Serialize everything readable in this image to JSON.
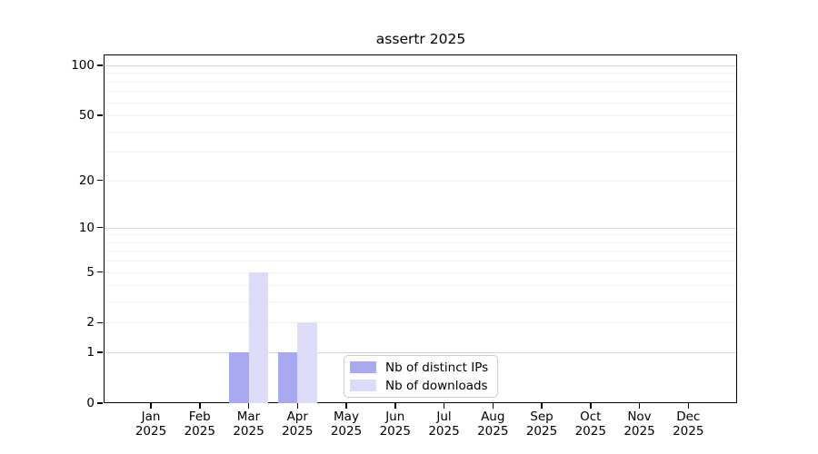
{
  "chart_data": {
    "type": "bar",
    "title": "assertr 2025",
    "categories": [
      "Jan",
      "Feb",
      "Mar",
      "Apr",
      "May",
      "Jun",
      "Jul",
      "Aug",
      "Sep",
      "Oct",
      "Nov",
      "Dec"
    ],
    "x_year_label": "2025",
    "series": [
      {
        "name": "Nb of distinct IPs",
        "color": "#a9a9f1",
        "values": [
          0,
          0,
          1,
          1,
          0,
          0,
          0,
          0,
          0,
          0,
          0,
          0
        ]
      },
      {
        "name": "Nb of downloads",
        "color": "#dcdcf8",
        "values": [
          0,
          0,
          5,
          2,
          0,
          0,
          0,
          0,
          0,
          0,
          0,
          0
        ]
      }
    ],
    "xlabel": "",
    "ylabel": "",
    "y_axis": {
      "scale": "log1p",
      "tick_labels": [
        "0",
        "1",
        "2",
        "5",
        "10",
        "20",
        "50",
        "100"
      ],
      "tick_values": [
        0,
        1,
        2,
        5,
        10,
        20,
        50,
        100
      ],
      "ylim": [
        0,
        115
      ],
      "decade_grid_values": [
        1,
        10,
        100
      ],
      "minor_grid_values": [
        2,
        3,
        4,
        5,
        6,
        7,
        8,
        9,
        20,
        30,
        40,
        50,
        60,
        70,
        80,
        90
      ]
    },
    "grid": true,
    "legend": {
      "position": "inside-bottom-center"
    }
  }
}
